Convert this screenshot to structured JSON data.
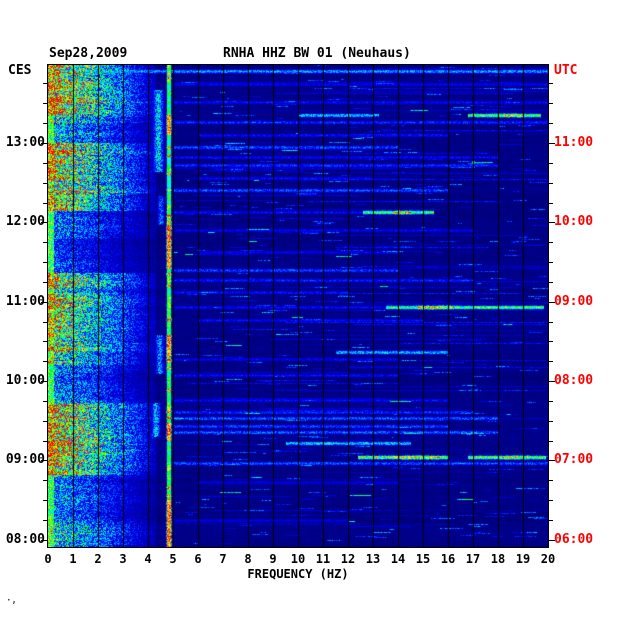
{
  "page": {
    "corner_mark": "·,"
  },
  "chart_data": {
    "type": "heatmap",
    "subtype": "seismic-spectrogram",
    "title": "RNHA HHZ BW 01 (Neuhaus)",
    "date": "Sep28,2009",
    "xlabel": "FREQUENCY (HZ)",
    "x_range": [
      0,
      20
    ],
    "x_ticks": [
      "0",
      "1",
      "2",
      "3",
      "4",
      "5",
      "6",
      "7",
      "8",
      "9",
      "10",
      "11",
      "12",
      "13",
      "14",
      "15",
      "16",
      "17",
      "18",
      "19",
      "20"
    ],
    "left_axis": {
      "label": "CES",
      "ticks": [
        "13:00",
        "12:00",
        "11:00",
        "10:00",
        "09:00",
        "08:00"
      ]
    },
    "right_axis": {
      "label": "UTC",
      "color": "#ff0000",
      "ticks": [
        "11:00",
        "10:00",
        "09:00",
        "08:00",
        "07:00",
        "06:00"
      ]
    },
    "colormap": "jet",
    "grid_color": "#000000",
    "background_color": "#ffffff",
    "features": {
      "low_freq_band": {
        "f_max_hz": 4.3,
        "activity_envelope": [
          [
            0.0,
            0.1,
            0.9
          ],
          [
            0.1,
            0.16,
            0.6
          ],
          [
            0.16,
            0.3,
            1.0
          ],
          [
            0.3,
            0.36,
            0.5
          ],
          [
            0.36,
            0.43,
            0.35
          ],
          [
            0.43,
            0.52,
            0.85
          ],
          [
            0.52,
            0.62,
            0.8
          ],
          [
            0.62,
            0.7,
            0.55
          ],
          [
            0.7,
            0.85,
            0.95
          ],
          [
            0.85,
            0.93,
            0.5
          ],
          [
            0.93,
            1.01,
            0.65
          ]
        ]
      },
      "spectral_line": {
        "freq": 4.82,
        "base_intensity": 0.65,
        "hot_segments": [
          [
            0.1,
            0.145
          ],
          [
            0.33,
            0.42
          ],
          [
            0.56,
            0.6
          ],
          [
            0.74,
            0.78
          ],
          [
            0.9,
            1.0
          ]
        ]
      },
      "secondary_blobs": [
        {
          "freq": 4.4,
          "width": 0.35,
          "t0": 0.05,
          "t1": 0.22,
          "intensity": 0.6
        },
        {
          "freq": 4.45,
          "width": 0.3,
          "t0": 0.56,
          "t1": 0.64,
          "intensity": 0.5
        },
        {
          "freq": 4.3,
          "width": 0.3,
          "t0": 0.7,
          "t1": 0.77,
          "intensity": 0.55
        },
        {
          "freq": 4.5,
          "width": 0.25,
          "t0": 0.27,
          "t1": 0.33,
          "intensity": 0.45
        }
      ],
      "events": [
        {
          "t": 0.012,
          "f0": 0.5,
          "f1": 20,
          "i": 0.5
        },
        {
          "t": 0.04,
          "f0": 5,
          "f1": 20,
          "i": 0.28
        },
        {
          "t": 0.077,
          "f0": 5,
          "f1": 20,
          "i": 0.3
        },
        {
          "t": 0.104,
          "f0": 10,
          "f1": 13.2,
          "i": 0.55
        },
        {
          "t": 0.104,
          "f0": 16.8,
          "f1": 19.7,
          "i": 0.85,
          "hot": [
            18.2,
            19.0
          ]
        },
        {
          "t": 0.118,
          "f0": 5,
          "f1": 20,
          "i": 0.35
        },
        {
          "t": 0.145,
          "f0": 6,
          "f1": 16,
          "i": 0.3
        },
        {
          "t": 0.17,
          "f0": 5,
          "f1": 14,
          "i": 0.4
        },
        {
          "t": 0.19,
          "f0": 5,
          "f1": 18,
          "i": 0.3
        },
        {
          "t": 0.207,
          "f0": 5,
          "f1": 18,
          "i": 0.35
        },
        {
          "t": 0.234,
          "f0": 6,
          "f1": 13,
          "i": 0.3
        },
        {
          "t": 0.259,
          "f0": 5,
          "f1": 16,
          "i": 0.4
        },
        {
          "t": 0.305,
          "f0": 12.6,
          "f1": 15.4,
          "i": 0.8,
          "hot": [
            13.8,
            14.5
          ]
        },
        {
          "t": 0.305,
          "f0": 5,
          "f1": 12.6,
          "i": 0.3
        },
        {
          "t": 0.342,
          "f0": 5,
          "f1": 17,
          "i": 0.28
        },
        {
          "t": 0.388,
          "f0": 6,
          "f1": 14,
          "i": 0.28
        },
        {
          "t": 0.425,
          "f0": 5,
          "f1": 14,
          "i": 0.38
        },
        {
          "t": 0.447,
          "f0": 5,
          "f1": 17,
          "i": 0.33
        },
        {
          "t": 0.47,
          "f0": 5,
          "f1": 12,
          "i": 0.3
        },
        {
          "t": 0.502,
          "f0": 13.5,
          "f1": 19.8,
          "i": 0.8,
          "hot": [
            14.8,
            16.2
          ]
        },
        {
          "t": 0.502,
          "f0": 5,
          "f1": 13.5,
          "i": 0.3
        },
        {
          "t": 0.529,
          "f0": 6,
          "f1": 15,
          "i": 0.3
        },
        {
          "t": 0.595,
          "f0": 11.5,
          "f1": 16,
          "i": 0.55
        },
        {
          "t": 0.61,
          "f0": 5,
          "f1": 14,
          "i": 0.28
        },
        {
          "t": 0.643,
          "f0": 5,
          "f1": 14,
          "i": 0.3
        },
        {
          "t": 0.695,
          "f0": 5,
          "f1": 16,
          "i": 0.3
        },
        {
          "t": 0.72,
          "f0": 5,
          "f1": 17,
          "i": 0.35
        },
        {
          "t": 0.732,
          "f0": 5,
          "f1": 18,
          "i": 0.42
        },
        {
          "t": 0.748,
          "f0": 5,
          "f1": 16,
          "i": 0.38
        },
        {
          "t": 0.761,
          "f0": 5,
          "f1": 18,
          "i": 0.42
        },
        {
          "t": 0.784,
          "f0": 9.5,
          "f1": 14.5,
          "i": 0.55
        },
        {
          "t": 0.813,
          "f0": 12.4,
          "f1": 16,
          "i": 0.9,
          "hot": [
            14.0,
            15.6
          ]
        },
        {
          "t": 0.813,
          "f0": 16.8,
          "f1": 19.9,
          "i": 0.85,
          "hot": [
            18.2,
            19.2
          ]
        },
        {
          "t": 0.826,
          "f0": 5,
          "f1": 20,
          "i": 0.4
        },
        {
          "t": 0.865,
          "f0": 6,
          "f1": 14,
          "i": 0.25
        },
        {
          "t": 0.944,
          "f0": 5,
          "f1": 12,
          "i": 0.25
        }
      ]
    }
  }
}
